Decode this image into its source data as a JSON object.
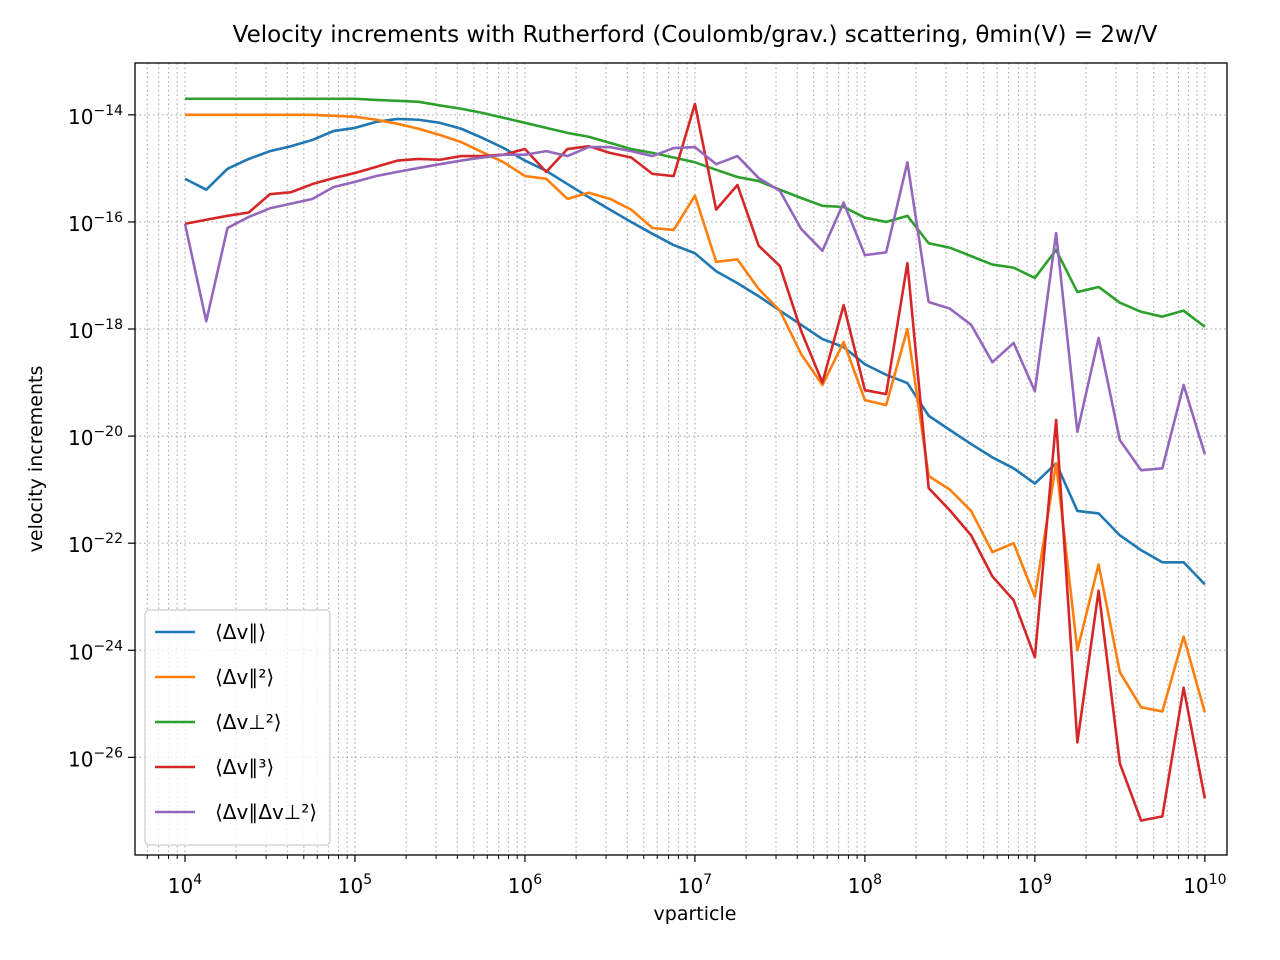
{
  "chart_data": {
    "type": "line",
    "title": "Velocity increments with Rutherford (Coulomb/grav.) scattering, θmin(V) = 2w/V",
    "xlabel": "vparticle",
    "ylabel": "velocity increments",
    "xscale": "log",
    "yscale": "log",
    "grid": true,
    "legend": "lower left",
    "xlim": [
      5080,
      13500000000.0
    ],
    "ylim": [
      1.5e-28,
      9.3e-14
    ],
    "xticks": [
      {
        "value": 10000.0,
        "label": "104"
      },
      {
        "value": 100000.0,
        "label": "105"
      },
      {
        "value": 1000000.0,
        "label": "106"
      },
      {
        "value": 10000000.0,
        "label": "107"
      },
      {
        "value": 100000000.0,
        "label": "108"
      },
      {
        "value": 1000000000.0,
        "label": "109"
      },
      {
        "value": 10000000000.0,
        "label": "1010"
      }
    ],
    "xminorticks": [
      6000,
      7000,
      8000,
      9000,
      20000.0,
      30000.0,
      40000.0,
      50000.0,
      60000.0,
      70000.0,
      80000.0,
      90000.0,
      200000.0,
      300000.0,
      400000.0,
      500000.0,
      600000.0,
      700000.0,
      800000.0,
      900000.0,
      2000000.0,
      3000000.0,
      4000000.0,
      5000000.0,
      6000000.0,
      7000000.0,
      8000000.0,
      9000000.0,
      20000000.0,
      30000000.0,
      40000000.0,
      50000000.0,
      60000000.0,
      70000000.0,
      80000000.0,
      90000000.0,
      200000000.0,
      300000000.0,
      400000000.0,
      500000000.0,
      600000000.0,
      700000000.0,
      800000000.0,
      900000000.0,
      2000000000.0,
      3000000000.0,
      4000000000.0,
      5000000000.0,
      6000000000.0,
      7000000000.0,
      8000000000.0,
      9000000000.0
    ],
    "yticks": [
      {
        "value": 1e-26,
        "label": "10−26"
      },
      {
        "value": 1e-24,
        "label": "10−24"
      },
      {
        "value": 1e-22,
        "label": "10−22"
      },
      {
        "value": 1e-20,
        "label": "10−20"
      },
      {
        "value": 1e-18,
        "label": "10−18"
      },
      {
        "value": 1e-16,
        "label": "10−16"
      },
      {
        "value": 1e-14,
        "label": "10−14"
      }
    ],
    "x": [
      10000.0,
      13335.0,
      17783.0,
      23714.0,
      31623.0,
      42170.0,
      56234.0,
      74989.0,
      100000.0,
      133350.0,
      177830.0,
      237140.0,
      316230.0,
      421700.0,
      562340.0,
      749890.0,
      1000000.0,
      1333500.0,
      1778300.0,
      2371400.0,
      3162300.0,
      4217000.0,
      5623400.0,
      7498900.0,
      10000000.0,
      13335000.0,
      17783000.0,
      23714000.0,
      31623000.0,
      42170000.0,
      56234000.0,
      74989000.0,
      100000000.0,
      133350000.0,
      177830000.0,
      237140000.0,
      316230000.0,
      421700000.0,
      562340000.0,
      749890000.0,
      1000000000.0,
      1333500000.0,
      1778300000.0,
      2371400000.0,
      3162300000.0,
      4217000000.0,
      5623400000.0,
      7498900000.0,
      10000000000.0
    ],
    "series": [
      {
        "name": "⟨Δv∥⟩",
        "color": "#1f77b4",
        "values": [
          6.4e-16,
          4e-16,
          9.8e-16,
          1.5e-15,
          2.1e-15,
          2.6e-15,
          3.4e-15,
          5e-15,
          5.7e-15,
          7.4e-15,
          8.4e-15,
          8.1e-15,
          7.1e-15,
          5.5e-15,
          3.7e-15,
          2.4e-15,
          1.4e-15,
          9e-16,
          5.1e-16,
          2.9e-16,
          1.7e-16,
          1e-16,
          6e-17,
          3.7e-17,
          2.6e-17,
          1.2e-17,
          7.2e-18,
          4.1e-18,
          2.2e-18,
          1.2e-18,
          6.5e-19,
          4.6e-19,
          2.2e-19,
          1.4e-19,
          9.8e-20,
          2.4e-20,
          1.3e-20,
          7.1e-21,
          4e-21,
          2.5e-21,
          1.3e-21,
          3.1e-21,
          4e-22,
          3.6e-22,
          1.4e-22,
          7.4e-23,
          4.4e-23,
          4.4e-23,
          1.7e-23
        ]
      },
      {
        "name": "⟨Δv∥²⟩",
        "color": "#ff7f0e",
        "values": [
          1e-14,
          1e-14,
          1e-14,
          1e-14,
          1e-14,
          1e-14,
          1e-14,
          9.6e-15,
          9.2e-15,
          8.1e-15,
          6.8e-15,
          5.5e-15,
          4.2e-15,
          3.1e-15,
          2e-15,
          1.3e-15,
          7.2e-16,
          6.4e-16,
          2.7e-16,
          3.5e-16,
          2.7e-16,
          1.7e-16,
          7.7e-17,
          7.1e-17,
          3.1e-16,
          1.8e-17,
          2e-17,
          5.6e-18,
          2.2e-18,
          3.4e-19,
          9e-20,
          5.7e-19,
          4.7e-20,
          3.8e-20,
          1e-18,
          1.8e-21,
          1e-21,
          4e-22,
          6.8e-23,
          1e-22,
          1e-23,
          3.1e-21,
          1e-24,
          4e-23,
          3.9e-25,
          8.6e-26,
          7.2e-26,
          1.8e-24,
          6.9e-26
        ]
      },
      {
        "name": "⟨Δv⊥²⟩",
        "color": "#2ca02c",
        "values": [
          2e-14,
          2e-14,
          2e-14,
          2e-14,
          2e-14,
          2e-14,
          2e-14,
          2e-14,
          2e-14,
          1.9e-14,
          1.83e-14,
          1.75e-14,
          1.5e-14,
          1.3e-14,
          1.09e-14,
          8.8e-15,
          7.1e-15,
          5.7e-15,
          4.6e-15,
          3.9e-15,
          3e-15,
          2.3e-15,
          1.95e-15,
          1.6e-15,
          1.3e-15,
          9.4e-16,
          6.9e-16,
          5.8e-16,
          4e-16,
          2.8e-16,
          2e-16,
          1.9e-16,
          1.2e-16,
          1e-16,
          1.3e-16,
          4e-17,
          3.3e-17,
          2.3e-17,
          1.6e-17,
          1.4e-17,
          9e-18,
          3e-17,
          4.9e-18,
          6.1e-18,
          3.1e-18,
          2.1e-18,
          1.7e-18,
          2.2e-18,
          1.1e-18
        ]
      },
      {
        "name": "⟨Δv∥³⟩",
        "color": "#d62728",
        "values": [
          9.2e-17,
          1.1e-16,
          1.3e-16,
          1.5e-16,
          3.3e-16,
          3.6e-16,
          5.1e-16,
          6.6e-16,
          8.2e-16,
          1.07e-15,
          1.4e-15,
          1.5e-15,
          1.45e-15,
          1.7e-15,
          1.7e-15,
          1.8e-15,
          2.3e-15,
          8.6e-16,
          2.3e-15,
          2.6e-15,
          1.95e-15,
          1.6e-15,
          7.9e-16,
          7.2e-16,
          1.6e-14,
          1.7e-16,
          4.9e-16,
          3.6e-17,
          1.5e-17,
          9.2e-19,
          1e-19,
          2.8e-18,
          7.2e-20,
          6.1e-20,
          1.7e-17,
          1.07e-21,
          4.1e-22,
          1.4e-22,
          2.4e-23,
          8.6e-24,
          7.4e-25,
          2e-20,
          1.9e-26,
          1.3e-23,
          7.7e-27,
          6.6e-28,
          7.9e-28,
          2e-25,
          1.7e-27
        ]
      },
      {
        "name": "⟨Δv∥Δv⊥²⟩",
        "color": "#9467bd",
        "values": [
          9.2e-17,
          1.4e-18,
          7.7e-17,
          1.24e-16,
          1.8e-16,
          2.2e-16,
          2.7e-16,
          4.5e-16,
          5.6e-16,
          7.2e-16,
          8.6e-16,
          1.02e-15,
          1.2e-15,
          1.4e-15,
          1.6e-15,
          1.8e-15,
          1.8e-15,
          2.1e-15,
          1.7e-15,
          2.5e-15,
          2.5e-15,
          2.1e-15,
          1.7e-15,
          2.4e-15,
          2.5e-15,
          1.2e-15,
          1.7e-15,
          6.6e-16,
          3.8e-16,
          7.4e-17,
          2.9e-17,
          2.3e-16,
          2.4e-17,
          2.7e-17,
          1.3e-15,
          3.2e-18,
          2.4e-18,
          1.2e-18,
          2.4e-19,
          5.5e-19,
          6.9e-20,
          6.2e-17,
          1.2e-20,
          6.8e-19,
          8.4e-21,
          2.3e-21,
          2.5e-21,
          9e-20,
          4.6e-21
        ]
      }
    ]
  }
}
